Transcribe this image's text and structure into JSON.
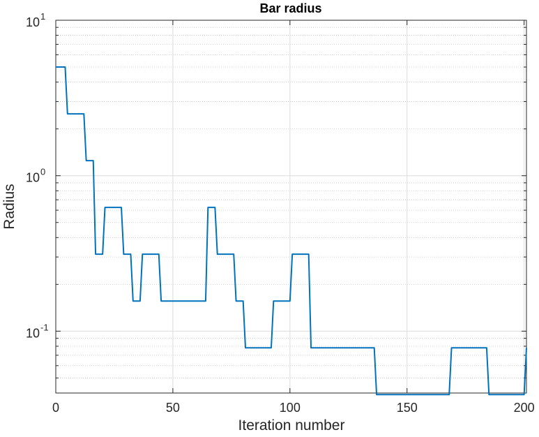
{
  "chart_data": {
    "type": "line",
    "title": "Bar radius",
    "xlabel": "Iteration number",
    "ylabel": "Radius",
    "xlim": [
      0,
      201
    ],
    "ylim": [
      0.04,
      10
    ],
    "yscale": "log",
    "grid": true,
    "minor_grid": true,
    "line_color": "#0072BD",
    "x_ticks": [
      0,
      50,
      100,
      150,
      200
    ],
    "x_tick_labels": [
      "0",
      "50",
      "100",
      "150",
      "200"
    ],
    "y_ticks": [
      0.1,
      1,
      10
    ],
    "y_tick_labels": [
      {
        "base": "10",
        "exp": "-1"
      },
      {
        "base": "10",
        "exp": "0"
      },
      {
        "base": "10",
        "exp": "1"
      }
    ],
    "series": [
      {
        "x": [
          0,
          4,
          5,
          12,
          13,
          16,
          17,
          20,
          21,
          28,
          29,
          32,
          33,
          36,
          37,
          44,
          45,
          64,
          65,
          68,
          69,
          76,
          77,
          80,
          81,
          92,
          93,
          100,
          101,
          108,
          109,
          136,
          137,
          168,
          169,
          184,
          185,
          200,
          201
        ],
        "y": [
          5,
          5,
          2.5,
          2.5,
          1.25,
          1.25,
          0.3125,
          0.3125,
          0.625,
          0.625,
          0.3125,
          0.3125,
          0.15625,
          0.15625,
          0.3125,
          0.3125,
          0.15625,
          0.15625,
          0.625,
          0.625,
          0.3125,
          0.3125,
          0.15625,
          0.15625,
          0.078125,
          0.078125,
          0.15625,
          0.15625,
          0.3125,
          0.3125,
          0.078125,
          0.078125,
          0.0390625,
          0.0390625,
          0.078125,
          0.078125,
          0.0390625,
          0.0390625,
          0.078125
        ]
      }
    ]
  }
}
